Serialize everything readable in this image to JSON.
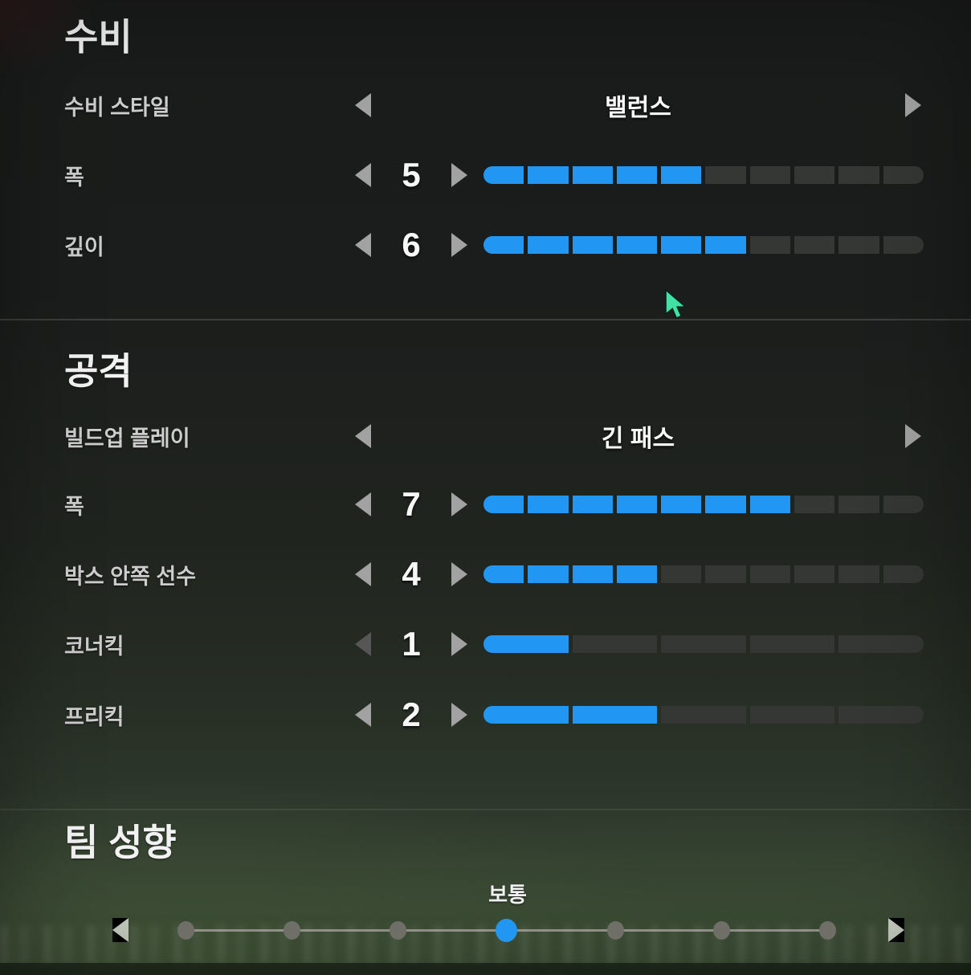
{
  "colors": {
    "accent_blue": "#2196f3",
    "segment_empty": "#353735",
    "cursor_green": "#3fe3a4"
  },
  "sections": {
    "defense": {
      "title": "수비",
      "style": {
        "label": "수비 스타일",
        "value": "밸런스"
      },
      "width": {
        "label": "폭",
        "value": 5,
        "max": 10
      },
      "depth": {
        "label": "깊이",
        "value": 6,
        "max": 10
      }
    },
    "attack": {
      "title": "공격",
      "buildup": {
        "label": "빌드업 플레이",
        "value": "긴 패스"
      },
      "width": {
        "label": "폭",
        "value": 7,
        "max": 10
      },
      "players_in_box": {
        "label": "박스 안쪽 선수",
        "value": 4,
        "max": 10
      },
      "corner_kicks": {
        "label": "코너킥",
        "value": 1,
        "max": 5
      },
      "free_kicks": {
        "label": "프리킥",
        "value": 2,
        "max": 5
      }
    },
    "mentality": {
      "title": "팀 성향",
      "value_label": "보통",
      "steps": 7,
      "selected_index": 3
    }
  }
}
